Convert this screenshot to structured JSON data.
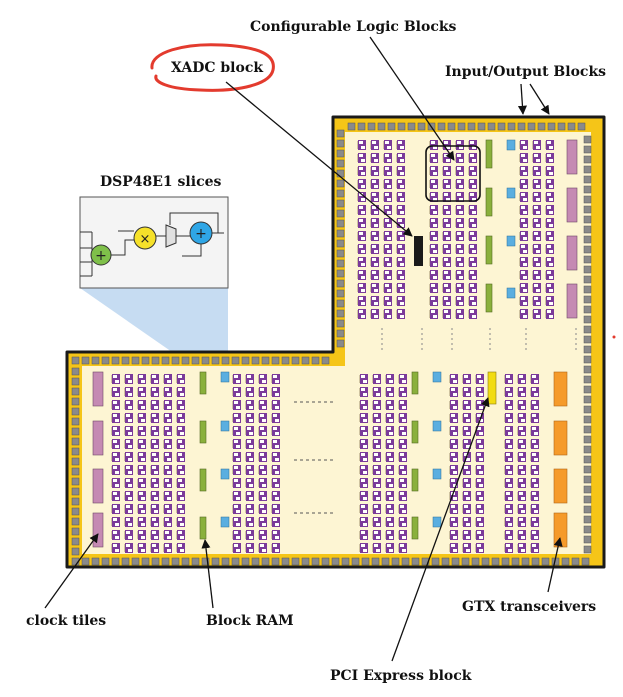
{
  "labels": {
    "clb": "Configurable Logic Blocks",
    "xadc": "XADC block",
    "iob": "Input/Output Blocks",
    "dsp": "DSP48E1 slices",
    "clock": "clock tiles",
    "bram": "Block RAM",
    "gtx": "GTX transceivers",
    "pcie": "PCI Express block"
  },
  "colors": {
    "die_border": "#1a1a1a",
    "die_fill": "#f5c518",
    "inner_fill": "#fdf5d3",
    "io_pad": "#8a8a8a",
    "clb_fill": "#7b3a9a",
    "clb_cell": "#ffffff",
    "bram": "#8ab03c",
    "dsp_cell": "#5aaee0",
    "clock_tile": "#c58ab3",
    "gtx": "#f59a2a",
    "pcie": "#f2dc10",
    "xadc": "#1a1a1a",
    "highlight_circle": "#e33b2e",
    "dsp_projection": "#bcd6f0"
  }
}
